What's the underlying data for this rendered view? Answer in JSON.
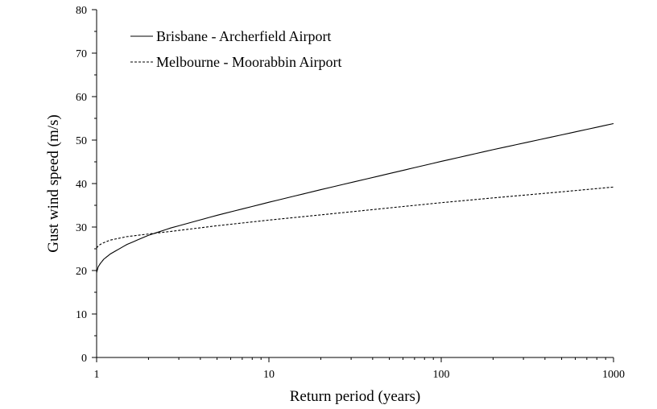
{
  "chart_data": {
    "type": "line",
    "title": "",
    "xlabel": "Return period (years)",
    "ylabel": "Gust wind speed (m/s)",
    "x_scale": "log",
    "xlim": [
      1,
      1000
    ],
    "ylim": [
      0,
      80
    ],
    "x_ticks": [
      "1",
      "10",
      "100",
      "1000"
    ],
    "y_ticks": [
      "0",
      "10",
      "20",
      "30",
      "40",
      "50",
      "60",
      "70",
      "80"
    ],
    "grid": false,
    "legend_position": "top-left",
    "series": [
      {
        "name": "Brisbane - Archerfield Airport",
        "style": "solid",
        "color": "#000000",
        "x": [
          1,
          1.02,
          1.05,
          1.1,
          1.2,
          1.5,
          2,
          2.7,
          5,
          10,
          20,
          50,
          100,
          200,
          500,
          1000
        ],
        "y": [
          19.5,
          20.8,
          21.6,
          22.6,
          23.8,
          26.0,
          28.1,
          29.8,
          32.7,
          35.7,
          38.6,
          42.3,
          45.1,
          47.8,
          51.2,
          53.8
        ]
      },
      {
        "name": "Melbourne - Moorabbin Airport",
        "style": "dashed",
        "color": "#000000",
        "x": [
          1,
          1.02,
          1.05,
          1.1,
          1.2,
          1.5,
          2,
          2.7,
          5,
          10,
          20,
          50,
          100,
          200,
          500,
          1000
        ],
        "y": [
          25.2,
          25.6,
          26.0,
          26.4,
          27.0,
          27.8,
          28.4,
          29.0,
          30.3,
          31.6,
          32.8,
          34.4,
          35.6,
          36.7,
          38.1,
          39.2
        ]
      }
    ]
  }
}
